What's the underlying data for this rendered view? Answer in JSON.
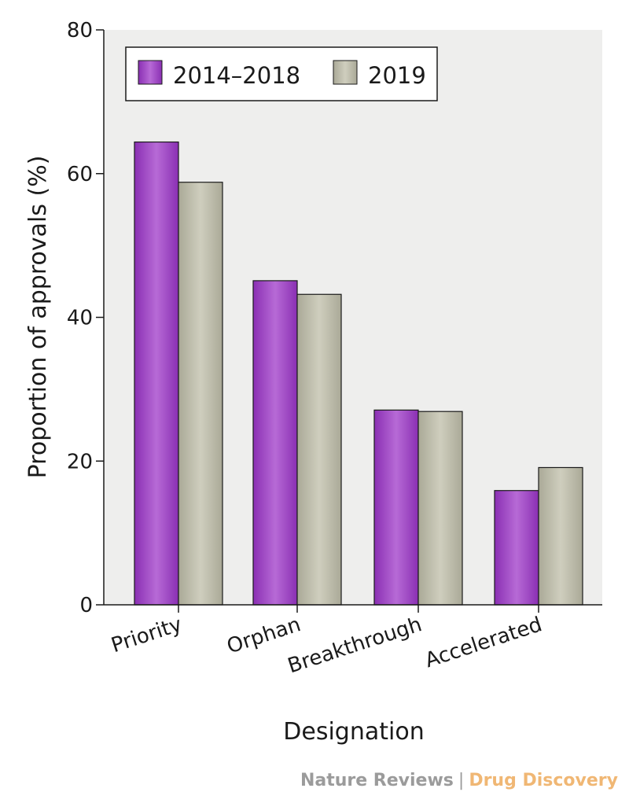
{
  "chart_data": {
    "type": "bar",
    "categories": [
      "Priority",
      "Orphan",
      "Breakthrough",
      "Accelerated"
    ],
    "series": [
      {
        "name": "2014–2018",
        "values": [
          64.4,
          45.1,
          27.1,
          15.9
        ],
        "color": "#a04ac6"
      },
      {
        "name": "2019",
        "values": [
          58.8,
          43.2,
          26.9,
          19.1
        ],
        "color": "#bdbcaa"
      }
    ],
    "xlabel": "Designation",
    "ylabel": "Proportion of approvals (%)",
    "ylim": [
      0,
      80
    ],
    "yticks": [
      0,
      20,
      40,
      60,
      80
    ],
    "grid": false,
    "legend_position": "top-left",
    "plot_background": "#eeeeed"
  },
  "credit": {
    "publisher": "Nature Reviews",
    "separator": "|",
    "journal": "Drug Discovery"
  }
}
